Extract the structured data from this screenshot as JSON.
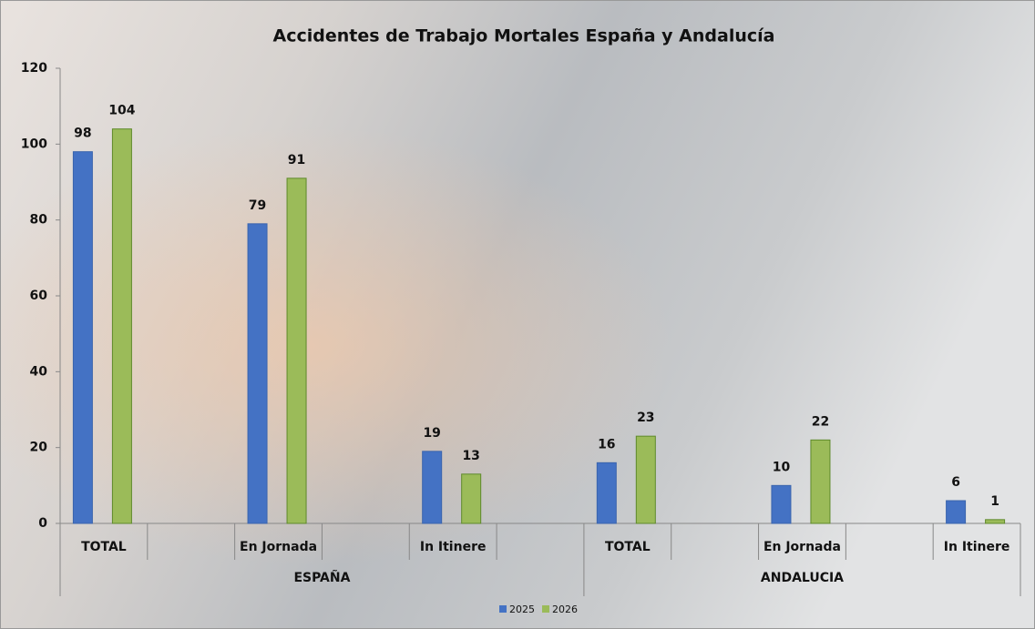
{
  "chart_data": {
    "type": "bar",
    "title": "Accidentes de Trabajo Mortales España y Andalucía",
    "categories": [
      "TOTAL",
      null,
      "En Jornada",
      null,
      "In Itinere",
      null,
      "TOTAL",
      null,
      "En Jornada",
      null,
      "In Itinere"
    ],
    "groups": [
      "ESPAÑA",
      "ANDALUCIA"
    ],
    "series": [
      {
        "name": "2025",
        "color": "#4472c4",
        "values": [
          98,
          null,
          79,
          null,
          19,
          null,
          16,
          null,
          10,
          null,
          6
        ]
      },
      {
        "name": "2026",
        "color": "#9bbb59",
        "values": [
          104,
          null,
          91,
          null,
          13,
          null,
          23,
          null,
          22,
          null,
          1
        ]
      }
    ],
    "ylim": [
      0,
      120
    ],
    "yticks": [
      0,
      20,
      40,
      60,
      80,
      100,
      120
    ],
    "legend": "bottom"
  }
}
